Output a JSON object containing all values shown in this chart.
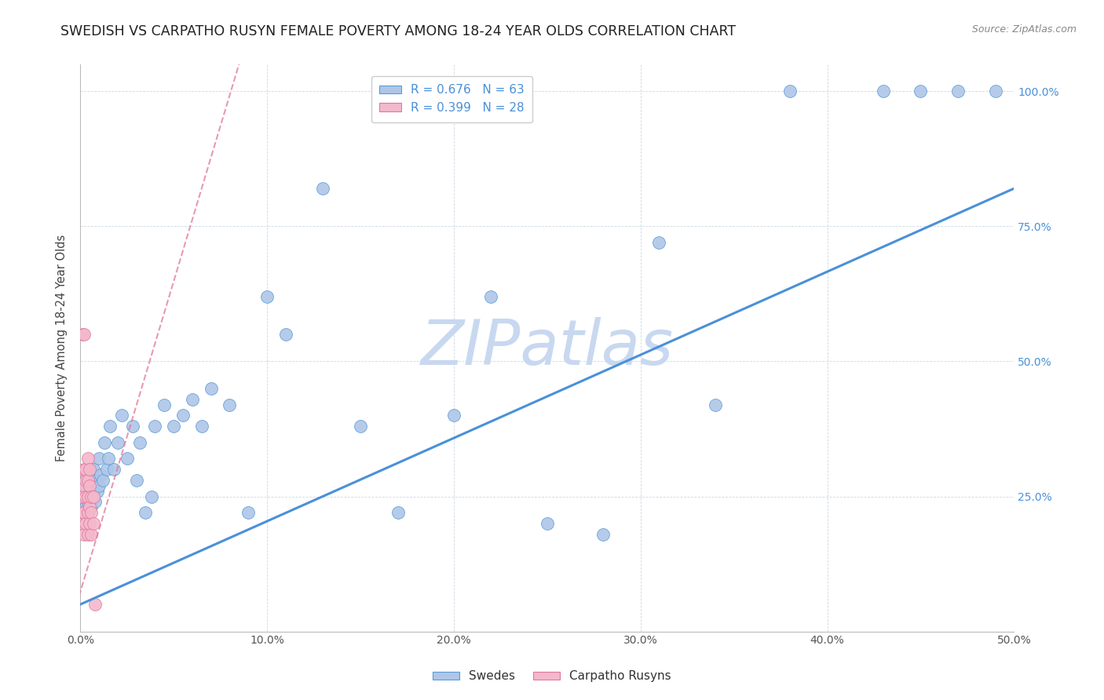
{
  "title": "SWEDISH VS CARPATHO RUSYN FEMALE POVERTY AMONG 18-24 YEAR OLDS CORRELATION CHART",
  "source": "Source: ZipAtlas.com",
  "ylabel": "Female Poverty Among 18-24 Year Olds",
  "xlim": [
    0,
    0.5
  ],
  "ylim": [
    0,
    1.05
  ],
  "xticks": [
    0.0,
    0.1,
    0.2,
    0.3,
    0.4,
    0.5
  ],
  "yticks": [
    0.0,
    0.25,
    0.5,
    0.75,
    1.0
  ],
  "xticklabels": [
    "0.0%",
    "10.0%",
    "20.0%",
    "30.0%",
    "40.0%",
    "50.0%"
  ],
  "yticklabels": [
    "",
    "25.0%",
    "50.0%",
    "75.0%",
    "100.0%"
  ],
  "legend_r_blue": "R = 0.676",
  "legend_n_blue": "N = 63",
  "legend_r_pink": "R = 0.399",
  "legend_n_pink": "N = 28",
  "blue_scatter_color": "#aec6e8",
  "blue_edge_color": "#5b9bd5",
  "pink_scatter_color": "#f4b8cc",
  "pink_edge_color": "#e07898",
  "blue_line_color": "#4a90d9",
  "pink_line_color": "#e07898",
  "watermark": "ZIPatlas",
  "watermark_color": "#c8d8f0",
  "swedes_x": [
    0.001,
    0.001,
    0.002,
    0.002,
    0.002,
    0.003,
    0.003,
    0.003,
    0.004,
    0.004,
    0.004,
    0.005,
    0.005,
    0.005,
    0.006,
    0.006,
    0.007,
    0.007,
    0.008,
    0.008,
    0.009,
    0.01,
    0.01,
    0.011,
    0.012,
    0.013,
    0.014,
    0.015,
    0.016,
    0.018,
    0.02,
    0.022,
    0.025,
    0.028,
    0.03,
    0.032,
    0.035,
    0.038,
    0.04,
    0.045,
    0.05,
    0.055,
    0.06,
    0.065,
    0.07,
    0.08,
    0.09,
    0.1,
    0.11,
    0.13,
    0.15,
    0.17,
    0.2,
    0.22,
    0.25,
    0.28,
    0.31,
    0.34,
    0.38,
    0.43,
    0.45,
    0.47,
    0.49
  ],
  "swedes_y": [
    0.24,
    0.26,
    0.22,
    0.25,
    0.27,
    0.23,
    0.26,
    0.28,
    0.22,
    0.24,
    0.29,
    0.25,
    0.27,
    0.3,
    0.23,
    0.28,
    0.25,
    0.3,
    0.24,
    0.28,
    0.26,
    0.27,
    0.32,
    0.29,
    0.28,
    0.35,
    0.3,
    0.32,
    0.38,
    0.3,
    0.35,
    0.4,
    0.32,
    0.38,
    0.28,
    0.35,
    0.22,
    0.25,
    0.38,
    0.42,
    0.38,
    0.4,
    0.43,
    0.38,
    0.45,
    0.42,
    0.22,
    0.62,
    0.55,
    0.82,
    0.38,
    0.22,
    0.4,
    0.62,
    0.2,
    0.18,
    0.72,
    0.42,
    1.0,
    1.0,
    1.0,
    1.0,
    1.0
  ],
  "rusyn_x": [
    0.001,
    0.001,
    0.001,
    0.001,
    0.002,
    0.002,
    0.002,
    0.002,
    0.002,
    0.003,
    0.003,
    0.003,
    0.003,
    0.004,
    0.004,
    0.004,
    0.004,
    0.004,
    0.005,
    0.005,
    0.005,
    0.005,
    0.006,
    0.006,
    0.006,
    0.007,
    0.007,
    0.008
  ],
  "rusyn_y": [
    0.2,
    0.22,
    0.25,
    0.55,
    0.18,
    0.22,
    0.27,
    0.3,
    0.55,
    0.2,
    0.25,
    0.28,
    0.3,
    0.18,
    0.22,
    0.25,
    0.28,
    0.32,
    0.2,
    0.23,
    0.27,
    0.3,
    0.18,
    0.22,
    0.25,
    0.2,
    0.25,
    0.05
  ],
  "blue_line_x": [
    0.0,
    0.5
  ],
  "blue_line_y": [
    0.05,
    0.82
  ],
  "pink_line_x": [
    -0.002,
    0.085
  ],
  "pink_line_y": [
    0.05,
    1.05
  ]
}
